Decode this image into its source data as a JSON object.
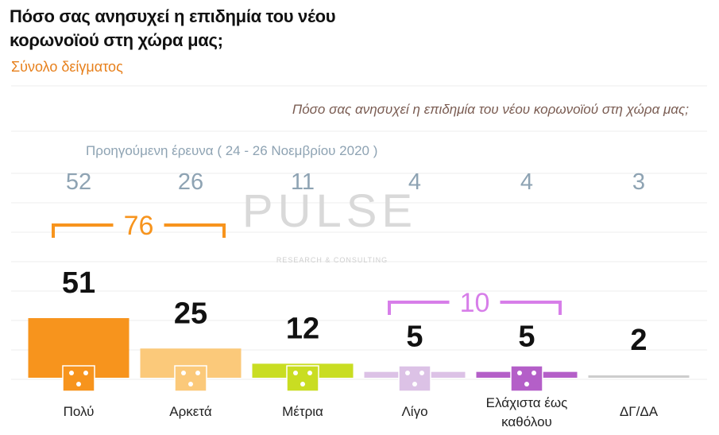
{
  "chart_data": {
    "type": "bar",
    "title": "Πόσο σας ανησυχεί η επιδημία του νέου κορωνοϊού στη χώρα μας;",
    "subtitle": "Σύνολο δείγματος",
    "question": "Πόσο σας ανησυχεί η επιδημία του νέου κορωνοϊού στη χώρα μας;",
    "categories": [
      "Πολύ",
      "Αρκετά",
      "Μέτρια",
      "Λίγο",
      "Ελάχιστα έως καθόλου",
      "ΔΓ/ΔΑ"
    ],
    "series": [
      {
        "colors": [
          "#f7941d",
          "#fbc97a",
          "#c9dd22",
          "#dcc2e6",
          "#b45fc8",
          "#cccccc"
        ],
        "values": [
          51,
          25,
          12,
          5,
          5,
          2
        ]
      },
      {
        "name": "Προηγούμενη έρευνα ( 24 - 26 Νοεμβρίου 2020 )",
        "color": "#8ea3b3",
        "values": [
          52,
          26,
          11,
          4,
          4,
          3
        ]
      }
    ],
    "groups": [
      {
        "members": [
          "Πολύ",
          "Αρκετά"
        ],
        "value": 76,
        "color": "#f7941d"
      },
      {
        "members": [
          "Λίγο",
          "Ελάχιστα έως καθόλου"
        ],
        "value": 10,
        "color": "#d77ee9"
      }
    ]
  },
  "watermark": {
    "name": "PULSE",
    "tagline": "RESEARCH & CONSULTING"
  }
}
